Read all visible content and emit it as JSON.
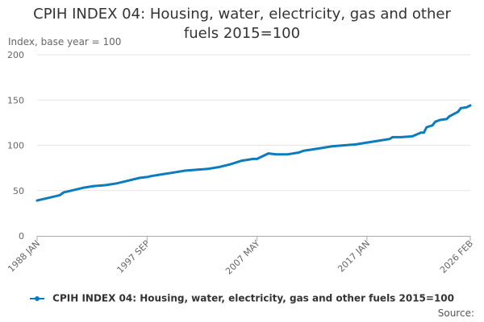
{
  "chart_data": {
    "type": "line",
    "title": "CPIH INDEX 04: Housing, water, electricity, gas and other fuels 2015=100",
    "ylabel": "Index, base year = 100",
    "xlabel": "",
    "ylim": [
      0,
      200
    ],
    "yticks": [
      "0",
      "50",
      "100",
      "150",
      "200"
    ],
    "xticks": [
      "1988 JAN",
      "1997 SEP",
      "2007 MAY",
      "2017 JAN",
      "2026 FEB"
    ],
    "grid": "horizontal",
    "legend_position": "bottom",
    "color": "#0b7cc0",
    "series": [
      {
        "name": "CPIH INDEX 04: Housing, water, electricity, gas and other fuels 2015=100",
        "points": [
          {
            "x": "1988 JAN",
            "y": 39
          },
          {
            "x": "1989 JAN",
            "y": 42
          },
          {
            "x": "1990 JAN",
            "y": 45
          },
          {
            "x": "1990 MAY",
            "y": 48
          },
          {
            "x": "1991 JAN",
            "y": 50
          },
          {
            "x": "1992 JAN",
            "y": 53
          },
          {
            "x": "1993 JAN",
            "y": 55
          },
          {
            "x": "1994 JAN",
            "y": 56
          },
          {
            "x": "1995 JAN",
            "y": 58
          },
          {
            "x": "1996 JAN",
            "y": 61
          },
          {
            "x": "1997 JAN",
            "y": 64
          },
          {
            "x": "1997 SEP",
            "y": 65
          },
          {
            "x": "1998 JAN",
            "y": 66
          },
          {
            "x": "1999 JAN",
            "y": 68
          },
          {
            "x": "2000 JAN",
            "y": 70
          },
          {
            "x": "2001 JAN",
            "y": 72
          },
          {
            "x": "2002 JAN",
            "y": 73
          },
          {
            "x": "2003 JAN",
            "y": 74
          },
          {
            "x": "2004 JAN",
            "y": 76
          },
          {
            "x": "2005 JAN",
            "y": 79
          },
          {
            "x": "2006 JAN",
            "y": 83
          },
          {
            "x": "2007 JAN",
            "y": 85
          },
          {
            "x": "2007 MAY",
            "y": 85
          },
          {
            "x": "2008 JAN",
            "y": 89
          },
          {
            "x": "2008 MAY",
            "y": 91
          },
          {
            "x": "2009 JAN",
            "y": 90
          },
          {
            "x": "2010 JAN",
            "y": 90
          },
          {
            "x": "2011 JAN",
            "y": 92
          },
          {
            "x": "2011 JUN",
            "y": 94
          },
          {
            "x": "2012 JAN",
            "y": 95
          },
          {
            "x": "2013 JAN",
            "y": 97
          },
          {
            "x": "2014 JAN",
            "y": 99
          },
          {
            "x": "2015 JAN",
            "y": 100
          },
          {
            "x": "2016 JAN",
            "y": 101
          },
          {
            "x": "2017 JAN",
            "y": 103
          },
          {
            "x": "2018 JAN",
            "y": 105
          },
          {
            "x": "2019 JAN",
            "y": 107
          },
          {
            "x": "2019 APR",
            "y": 109
          },
          {
            "x": "2020 JAN",
            "y": 109
          },
          {
            "x": "2021 JAN",
            "y": 110
          },
          {
            "x": "2021 OCT",
            "y": 114
          },
          {
            "x": "2022 JAN",
            "y": 114
          },
          {
            "x": "2022 APR",
            "y": 120
          },
          {
            "x": "2022 OCT",
            "y": 122
          },
          {
            "x": "2023 JAN",
            "y": 126
          },
          {
            "x": "2023 JUN",
            "y": 128
          },
          {
            "x": "2024 JAN",
            "y": 129
          },
          {
            "x": "2024 APR",
            "y": 132
          },
          {
            "x": "2025 JAN",
            "y": 137
          },
          {
            "x": "2025 APR",
            "y": 141
          },
          {
            "x": "2025 OCT",
            "y": 142
          },
          {
            "x": "2026 FEB",
            "y": 144
          }
        ]
      }
    ]
  },
  "legend": {
    "label": "CPIH INDEX 04: Housing, water, electricity, gas and other fuels 2015=100"
  },
  "source": {
    "label": "Source:"
  }
}
